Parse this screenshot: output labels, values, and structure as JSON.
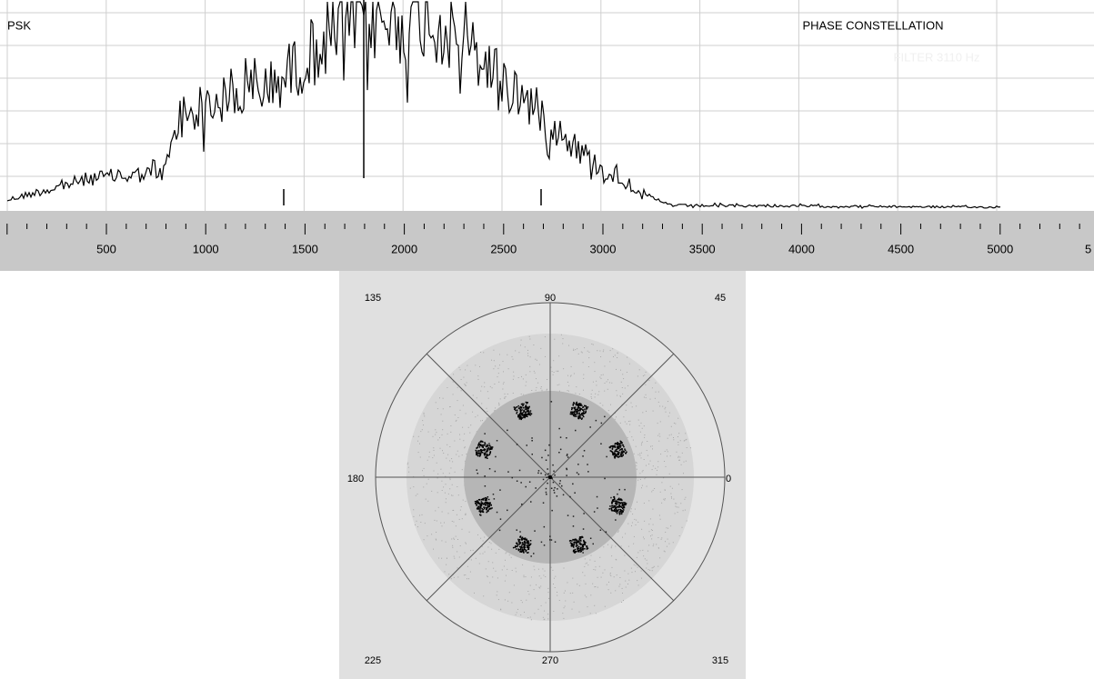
{
  "spectrum": {
    "mode_label": "PSK",
    "title": "PHASE CONSTELLATION",
    "filter": "FILTER 3110 Hz",
    "freq_labels": [
      "500",
      "1000",
      "1500",
      "2000",
      "2500",
      "3000",
      "3500",
      "4000",
      "4500",
      "5000",
      "5"
    ]
  },
  "constellation": {
    "angle_labels": [
      "135",
      "90",
      "45",
      "180",
      "0",
      "225",
      "270",
      "315"
    ]
  }
}
